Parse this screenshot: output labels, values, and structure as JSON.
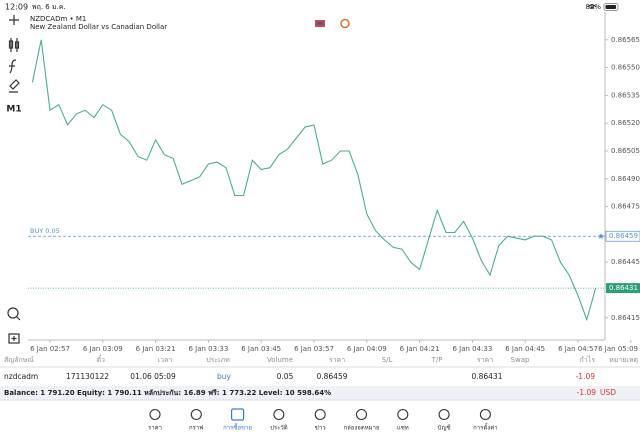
{
  "status_bar": {
    "time": "12:09",
    "date": "พฤ. 6 ม.ค.",
    "battery": "89%"
  },
  "chart": {
    "symbol": "NZDCADm • M1",
    "description": "New Zealand Dollar vs Canadian Dollar",
    "timeframe": "M1"
  },
  "chart_data": {
    "type": "line",
    "color": "#4caf85",
    "series": [
      {
        "values": [
          0.86542,
          0.86565,
          0.86527,
          0.8653,
          0.86519,
          0.86525,
          0.86527,
          0.86523,
          0.8653,
          0.86527,
          0.86514,
          0.8651,
          0.86502,
          0.865,
          0.86511,
          0.86503,
          0.86501,
          0.86487,
          0.86489,
          0.86491,
          0.86498,
          0.86499,
          0.86496,
          0.86481,
          0.86481,
          0.865,
          0.86495,
          0.86496,
          0.86503,
          0.86506,
          0.86512,
          0.86518,
          0.86519,
          0.86498,
          0.865,
          0.86505,
          0.86505,
          0.86492,
          0.86471,
          0.86462,
          0.86457,
          0.86453,
          0.86452,
          0.86445,
          0.86441,
          0.86457,
          0.86473,
          0.86461,
          0.86461,
          0.86467,
          0.86458,
          0.86446,
          0.86438,
          0.86454,
          0.86459,
          0.86458,
          0.86457,
          0.86459,
          0.86459,
          0.86457,
          0.86445,
          0.86438,
          0.86427,
          0.86414,
          0.86431
        ]
      }
    ],
    "ylim": [
      0.86403,
      0.8658
    ],
    "yticks": [
      0.86565,
      {
        "value": 0.8655,
        "label": "0.86550"
      },
      0.86535,
      {
        "value": 0.8652,
        "label": "0.86520"
      },
      0.86505,
      {
        "value": 0.8649,
        "label": "0.86490"
      },
      0.86475,
      0.86445,
      0.86415
    ],
    "xticks": [
      {
        "value": 2,
        "label": "6 Jan 02:57"
      },
      {
        "value": 8,
        "label": "6 Jan 03:09"
      },
      {
        "value": 14,
        "label": "6 Jan 03:21"
      },
      {
        "value": 20,
        "label": "6 Jan 03:33"
      },
      {
        "value": 26,
        "label": "6 Jan 03:45"
      },
      {
        "value": 32,
        "label": "6 Jan 03:57"
      },
      {
        "value": 38,
        "label": "6 Jan 04:09"
      },
      {
        "value": 44,
        "label": "6 Jan 04:21"
      },
      {
        "value": 50,
        "label": "6 Jan 04:33"
      },
      {
        "value": 56,
        "label": "6 Jan 04:45"
      },
      {
        "value": 62,
        "label": "6 Jan 04:57"
      },
      {
        "value": 68,
        "label": "6 Jan 05:09"
      }
    ],
    "order_label": "BUY 0.05",
    "order_price": 0.86459,
    "order_color": "#5b8fd6",
    "bid_price": 0.86431,
    "bid_color": "#2e9e7a"
  },
  "table": {
    "headers": [
      "สัญลักษณ์",
      "ตั๋ว",
      "เวลา",
      "ประเภท",
      "Volume",
      "ราคา",
      "S/L",
      "T/P",
      "ราคา",
      "Swap",
      "กำไร",
      "หมายเหตุ"
    ],
    "row": [
      "nzdcadm",
      "171130122",
      "01.06 05:09",
      "buy",
      "0.05",
      "0.86459",
      "0.86431",
      "-1.09"
    ]
  },
  "summary": {
    "text": "Balance: 1 791.20 Equity: 1 790.11 หลักประกัน: 16.89 ฟรี: 1 773.22 Level: 10 598.64%",
    "profit": "-1.09",
    "currency": "USD"
  },
  "nav": {
    "items": [
      "ราคา",
      "กราฟ",
      "การซื้อขาย",
      "ประวัติ",
      "ข่าว",
      "กล่องจดหมาย",
      "แชท",
      "บัญชี",
      "การตั้งค่า"
    ],
    "active": 2
  }
}
